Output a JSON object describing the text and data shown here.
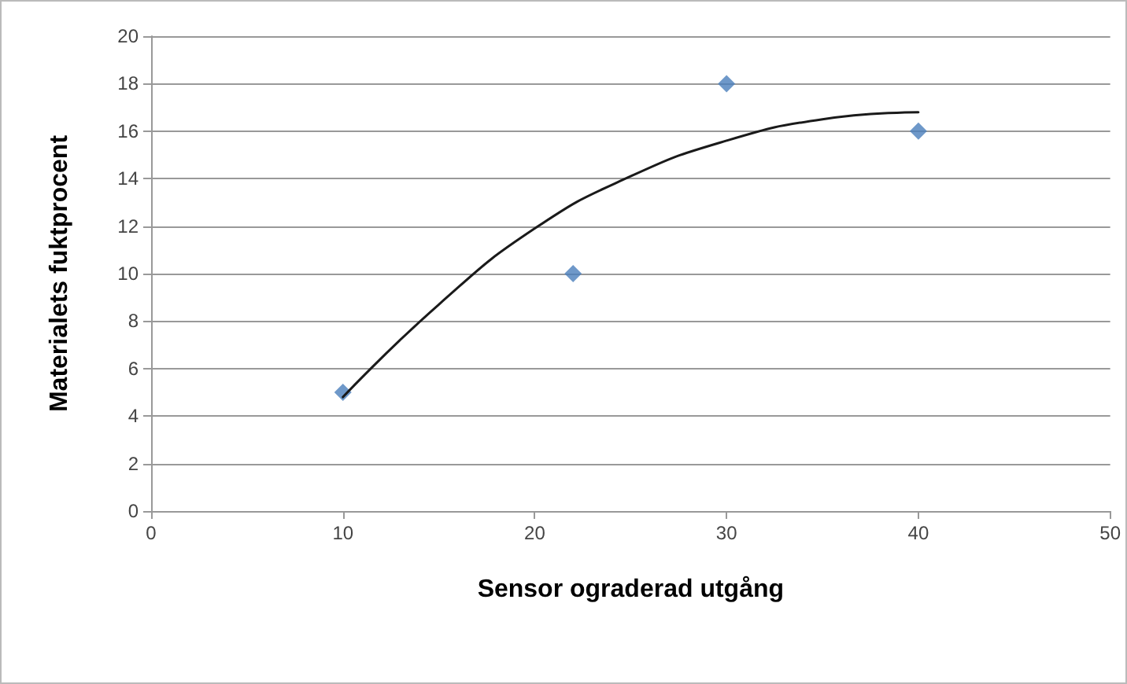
{
  "chart_data": {
    "type": "scatter",
    "xlabel": "Sensor ograderad utgång",
    "ylabel": "Materialets fuktprocent",
    "xlim": [
      0,
      50
    ],
    "xticks": [
      0,
      10,
      20,
      30,
      40,
      50
    ],
    "ylim": [
      0,
      20
    ],
    "yticks": [
      0,
      2,
      4,
      6,
      8,
      10,
      12,
      14,
      16,
      18,
      20
    ],
    "grid": "y",
    "marker": "diamond",
    "series": [
      {
        "color": "#4a7ebb",
        "x": [
          10,
          22,
          30,
          40
        ],
        "values": [
          5,
          10,
          18,
          16
        ]
      },
      {
        "type": "line",
        "color": "#1a1a1a",
        "marker": "none",
        "line_style": "solid",
        "x": [
          10,
          15,
          20,
          25,
          30,
          35,
          40
        ],
        "values": [
          4.8,
          8.7,
          11.9,
          14.1,
          15.6,
          16.5,
          16.8
        ]
      }
    ]
  }
}
